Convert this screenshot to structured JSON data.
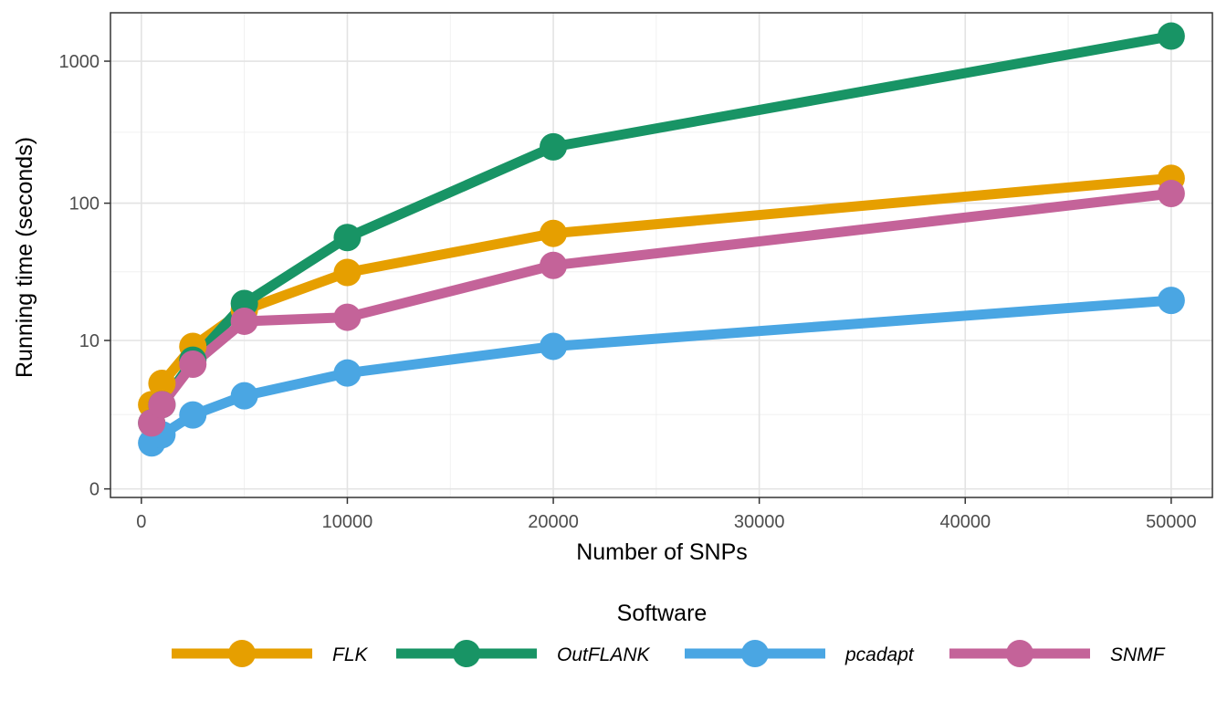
{
  "chart_data": {
    "type": "line",
    "title": "",
    "xlabel": "Number of SNPs",
    "ylabel": "Running time (seconds)",
    "xlim": [
      -1500,
      52000
    ],
    "x_ticks": [
      0,
      10000,
      20000,
      30000,
      40000,
      50000
    ],
    "x_tick_labels": [
      "0",
      "10000",
      "20000",
      "30000",
      "40000",
      "50000"
    ],
    "y_ticks": [
      0,
      10,
      100,
      1000
    ],
    "y_tick_labels": [
      "0",
      "10",
      "100",
      "1000"
    ],
    "y_scale": "pseudo-log (log10(y+1))",
    "grid": true,
    "legend_title": "Software",
    "legend_position": "bottom",
    "series": [
      {
        "name": "FLK",
        "color": "#E69F00",
        "x": [
          500,
          1000,
          2500,
          5000,
          10000,
          20000,
          50000
        ],
        "values": [
          2.9,
          4.5,
          9,
          17,
          32,
          61,
          150
        ]
      },
      {
        "name": "OutFLANK",
        "color": "#189465",
        "x": [
          500,
          1000,
          2500,
          5000,
          10000,
          20000,
          50000
        ],
        "values": [
          1.9,
          2.9,
          7,
          19,
          57,
          250,
          1500
        ]
      },
      {
        "name": "pcadapt",
        "color": "#4AA6E3",
        "x": [
          500,
          1000,
          2500,
          5000,
          10000,
          20000,
          50000
        ],
        "values": [
          1.1,
          1.4,
          2.3,
          3.5,
          5.5,
          9,
          20
        ]
      },
      {
        "name": "SNMF",
        "color": "#C46399",
        "x": [
          500,
          1000,
          2500,
          5000,
          10000,
          20000,
          50000
        ],
        "values": [
          1.9,
          2.9,
          6.5,
          14,
          15,
          36,
          117
        ]
      }
    ]
  }
}
